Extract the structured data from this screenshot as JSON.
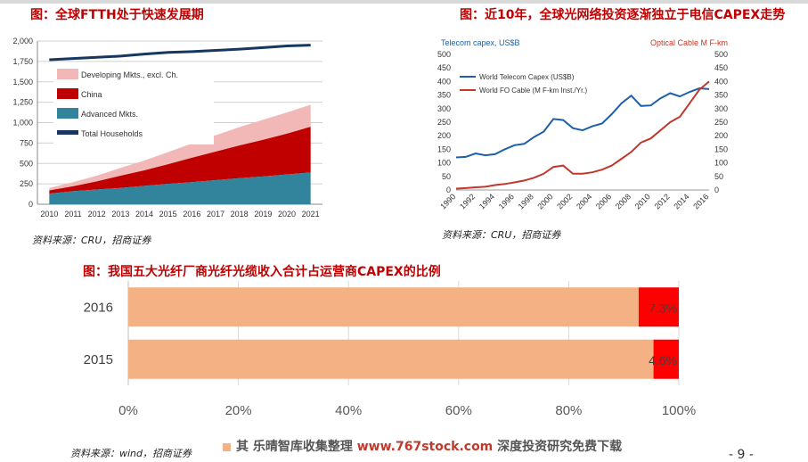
{
  "titles": {
    "ftth": "图：全球FTTH处于快速发展期",
    "capex": "图：近10年，全球光网络投资逐渐独立于电信CAPEX走势",
    "ratio": "图：我国五大光纤厂商光纤光缆收入合计占运营商CAPEX的比例"
  },
  "sources": {
    "ftth": "资料来源：CRU，招商证券",
    "capex": "资料来源：CRU，招商证券",
    "ratio": "资料来源：wind，招商证券"
  },
  "watermark": {
    "legend_label": "其",
    "text": "乐晴智库收集整理",
    "url": "www.767stock.com",
    "tail": "深度投资研究免费下载"
  },
  "page_number": "- 9 -",
  "colors": {
    "title_red": "#c00000",
    "advanced": "#31849b",
    "china": "#c00000",
    "developing": "#f2b8b8",
    "households": "#17375e",
    "telecom": "#1f5fa8",
    "fo_cable": "#c0392b",
    "bar_peach": "#f4b183",
    "bar_red": "#ff0000"
  },
  "chart_data": [
    {
      "type": "area",
      "title": "图：全球FTTH处于快速发展期",
      "categories": [
        "2010",
        "2011",
        "2012",
        "2013",
        "2014",
        "2015",
        "2016",
        "2017",
        "2018",
        "2019",
        "2020",
        "2021"
      ],
      "ylim": [
        0,
        2000
      ],
      "yticks": [
        "0",
        "250",
        "500",
        "750",
        "1,000",
        "1,250",
        "1,500",
        "1,750",
        "2,000"
      ],
      "stacked": true,
      "legend_position": "top-left",
      "series": [
        {
          "name": "Advanced Mkts.",
          "values": [
            130,
            160,
            180,
            200,
            225,
            250,
            270,
            295,
            320,
            340,
            365,
            390
          ]
        },
        {
          "name": "China",
          "values": [
            40,
            60,
            100,
            150,
            190,
            240,
            300,
            350,
            400,
            450,
            500,
            560
          ]
        },
        {
          "name": "Developing Mkts., excl. Ch.",
          "values": [
            30,
            50,
            70,
            95,
            120,
            150,
            175,
            200,
            225,
            245,
            260,
            270
          ]
        },
        {
          "name": "Total Households",
          "type": "line",
          "values": [
            1770,
            1785,
            1800,
            1815,
            1840,
            1860,
            1870,
            1885,
            1900,
            1920,
            1940,
            1950
          ]
        }
      ]
    },
    {
      "type": "line",
      "title": "图：近10年，全球光网络投资逐渐独立于电信CAPEX走势",
      "ylabel_left": "Telecom capex, US$B",
      "ylabel_right": "Optical Cable M F-km",
      "x": [
        1990,
        1991,
        1992,
        1993,
        1994,
        1995,
        1996,
        1997,
        1998,
        1999,
        2000,
        2001,
        2002,
        2003,
        2004,
        2005,
        2006,
        2007,
        2008,
        2009,
        2010,
        2011,
        2012,
        2013,
        2014,
        2015,
        2016
      ],
      "xticks": [
        "1990",
        "1992",
        "1994",
        "1996",
        "1998",
        "2000",
        "2002",
        "2004",
        "2006",
        "2008",
        "2010",
        "2012",
        "2014",
        "2016"
      ],
      "ylim_left": [
        0,
        500
      ],
      "ylim_right": [
        0,
        500
      ],
      "yticks": [
        "0",
        "50",
        "100",
        "150",
        "200",
        "250",
        "300",
        "350",
        "400",
        "450",
        "500"
      ],
      "legend_position": "top-left",
      "series": [
        {
          "name": "World Telecom Capex (US$B)",
          "axis": "left",
          "values": [
            120,
            122,
            135,
            128,
            132,
            150,
            165,
            170,
            195,
            215,
            262,
            258,
            228,
            220,
            235,
            245,
            280,
            320,
            348,
            310,
            312,
            338,
            357,
            345,
            362,
            375,
            372
          ]
        },
        {
          "name": "World FO Cable (M F-km Inst./Yr.)",
          "axis": "right",
          "values": [
            5,
            7,
            10,
            12,
            18,
            22,
            28,
            35,
            45,
            60,
            85,
            90,
            60,
            60,
            65,
            75,
            90,
            115,
            140,
            175,
            190,
            220,
            250,
            270,
            320,
            370,
            400
          ]
        }
      ]
    },
    {
      "type": "bar",
      "orientation": "horizontal",
      "stacked": true,
      "title": "图：我国五大光纤厂商光纤光缆收入合计占运营商CAPEX的比例",
      "categories": [
        "2016",
        "2015"
      ],
      "xlim": [
        0,
        100
      ],
      "xticks": [
        "0%",
        "20%",
        "40%",
        "60%",
        "80%",
        "100%"
      ],
      "series": [
        {
          "values": [
            92.7,
            95.4
          ]
        },
        {
          "values": [
            7.3,
            4.6
          ],
          "labels": [
            "7.3%",
            "4.6%"
          ]
        }
      ]
    }
  ]
}
